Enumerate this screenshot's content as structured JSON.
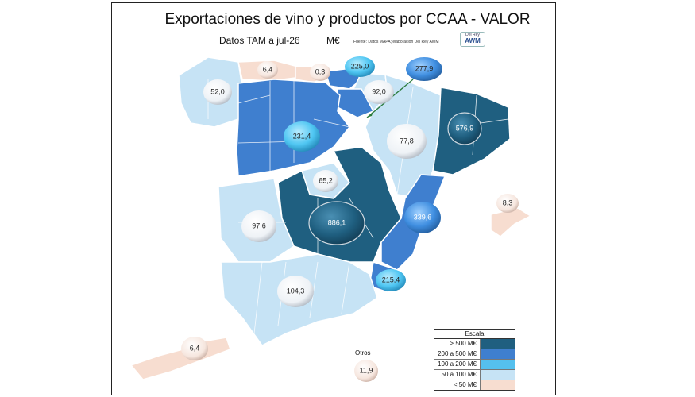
{
  "title": "Exportaciones de vino y productos por CCAA - VALOR",
  "subtitle": "Datos TAM a  jul-26",
  "unit": "M€",
  "source": "Fuente: Datos MAPA; elaboración Del Rey AWM",
  "logo": {
    "top": "Del Rey",
    "bottom": "AWM"
  },
  "otros_label": "Otros",
  "legend": {
    "title": "Escala",
    "items": [
      {
        "label": "> 500 M€",
        "color": "#1f5f80"
      },
      {
        "label": "200 a 500 M€",
        "color": "#3f7fcf"
      },
      {
        "label": "100 a 200 M€",
        "color": "#55c0ee"
      },
      {
        "label": "50 a 100 M€",
        "color": "#c6e3f5"
      },
      {
        "label": "< 50 M€",
        "color": "#f7ddd0"
      }
    ]
  },
  "chart_data": {
    "type": "map",
    "title": "Exportaciones de vino y productos por CCAA - VALOR",
    "subtitle": "Datos TAM a  jul-26",
    "unit": "M€",
    "values": [
      "6,4",
      "0,3",
      "225,0",
      "277,9",
      "52,0",
      "92,0",
      "231,4",
      "77,8",
      "576,9",
      "65,2",
      "886,1",
      "339,6",
      "97,6",
      "8,3",
      "104,3",
      "215,4",
      "6,4",
      "11,9"
    ]
  }
}
